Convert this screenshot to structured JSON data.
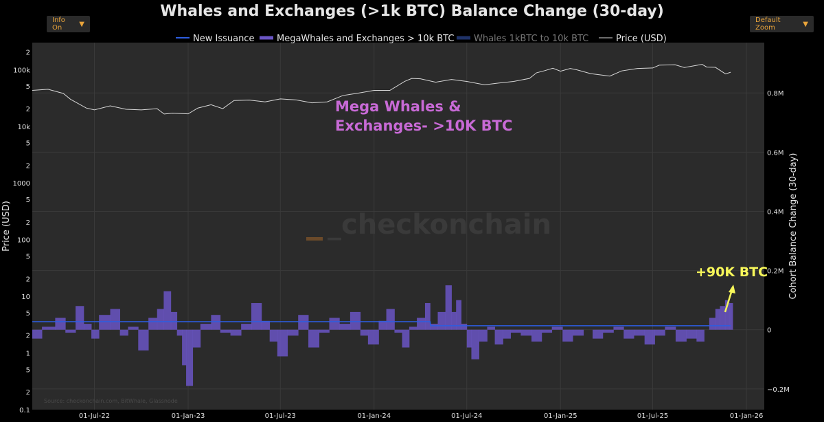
{
  "title": "Whales and Exchanges (>1k BTC) Balance Change (30-day)",
  "controls": {
    "info_label": "Info On",
    "zoom_label": "Default Zoom",
    "caret": "▼"
  },
  "colors": {
    "background": "#000000",
    "plot_bg": "#2b2b2b",
    "mega_fill": "#6a55c4",
    "issuance": "#2d5de0",
    "whales_1k_10k": "#1f3268",
    "price": "#d8d8d8",
    "annotation_pink": "#c86ad6",
    "annotation_yellow": "#f7f75a"
  },
  "annotations": {
    "mega_line1": "Mega Whales &",
    "mega_line2": "Exchanges- >10K BTC",
    "callout": "+90K BTC",
    "watermark": "_checkonchain",
    "source": "Source: checkonchain.com, BitWhale, Glassnode"
  },
  "chart_data": {
    "type": "area",
    "title": "Whales and Exchanges (>1k BTC) Balance Change (30-day)",
    "legend_position": "top",
    "legend": [
      "New Issuance",
      "MegaWhales and Exchanges > 10k BTC",
      "Whales 1kBTC to 10k BTC",
      "Price (USD)"
    ],
    "x_ticks": [
      "01-Jul-22",
      "01-Jan-23",
      "01-Jul-23",
      "01-Jan-24",
      "01-Jul-24",
      "01-Jan-25",
      "01-Jul-25",
      "01-Jan-26"
    ],
    "x_range": [
      "2022-03-01",
      "2026-02-05"
    ],
    "y_left": {
      "label": "Price (USD)",
      "scale": "log",
      "range": [
        0.1,
        300000
      ],
      "major_ticks": [
        "0.1",
        "1",
        "10",
        "100",
        "1000",
        "10k",
        "100k"
      ],
      "minor_ticks": [
        "2",
        "5"
      ]
    },
    "y_right": {
      "label": "Cohort Balance Change (30-day)",
      "range": [
        -0.27,
        0.97
      ],
      "ticks": [
        {
          "v": -0.2,
          "label": "−0.2M"
        },
        {
          "v": 0,
          "label": "0"
        },
        {
          "v": 0.2,
          "label": "0.2M"
        },
        {
          "v": 0.4,
          "label": "0.4M"
        },
        {
          "v": 0.6,
          "label": "0.6M"
        },
        {
          "v": 0.8,
          "label": "0.8M"
        }
      ]
    },
    "series": [
      {
        "name": "Price (USD)",
        "axis": "left",
        "points": [
          [
            "2022-03-01",
            43000
          ],
          [
            "2022-04-01",
            45000
          ],
          [
            "2022-05-01",
            38000
          ],
          [
            "2022-05-15",
            30000
          ],
          [
            "2022-06-15",
            21000
          ],
          [
            "2022-07-01",
            19500
          ],
          [
            "2022-08-01",
            23000
          ],
          [
            "2022-09-01",
            20000
          ],
          [
            "2022-10-01",
            19500
          ],
          [
            "2022-11-01",
            20500
          ],
          [
            "2022-11-15",
            16500
          ],
          [
            "2022-12-01",
            17000
          ],
          [
            "2023-01-01",
            16600
          ],
          [
            "2023-01-20",
            21000
          ],
          [
            "2023-02-15",
            24000
          ],
          [
            "2023-03-10",
            20500
          ],
          [
            "2023-04-01",
            28500
          ],
          [
            "2023-05-01",
            29000
          ],
          [
            "2023-06-01",
            27000
          ],
          [
            "2023-07-01",
            30500
          ],
          [
            "2023-08-01",
            29200
          ],
          [
            "2023-09-01",
            26000
          ],
          [
            "2023-10-01",
            27000
          ],
          [
            "2023-11-01",
            35000
          ],
          [
            "2023-12-01",
            38500
          ],
          [
            "2024-01-01",
            43000
          ],
          [
            "2024-02-01",
            43000
          ],
          [
            "2024-03-01",
            62000
          ],
          [
            "2024-03-15",
            70000
          ],
          [
            "2024-04-01",
            69000
          ],
          [
            "2024-05-01",
            60000
          ],
          [
            "2024-06-01",
            67000
          ],
          [
            "2024-07-01",
            62000
          ],
          [
            "2024-08-05",
            54000
          ],
          [
            "2024-09-01",
            58000
          ],
          [
            "2024-10-01",
            62000
          ],
          [
            "2024-11-01",
            70000
          ],
          [
            "2024-11-15",
            88000
          ],
          [
            "2024-12-01",
            96000
          ],
          [
            "2024-12-17",
            106000
          ],
          [
            "2025-01-01",
            94000
          ],
          [
            "2025-01-20",
            105000
          ],
          [
            "2025-02-01",
            100000
          ],
          [
            "2025-03-01",
            85000
          ],
          [
            "2025-04-08",
            77000
          ],
          [
            "2025-05-01",
            95000
          ],
          [
            "2025-06-01",
            105000
          ],
          [
            "2025-07-01",
            107000
          ],
          [
            "2025-07-14",
            120000
          ],
          [
            "2025-08-14",
            122000
          ],
          [
            "2025-09-01",
            109000
          ],
          [
            "2025-10-06",
            124000
          ],
          [
            "2025-10-15",
            111000
          ],
          [
            "2025-11-01",
            110000
          ],
          [
            "2025-11-21",
            84000
          ],
          [
            "2025-12-01",
            90000
          ]
        ]
      },
      {
        "name": "MegaWhales and Exchanges > 10k BTC",
        "axis": "right",
        "points": [
          [
            "2022-03-01",
            -0.03
          ],
          [
            "2022-03-20",
            0.01
          ],
          [
            "2022-04-15",
            0.04
          ],
          [
            "2022-05-05",
            -0.01
          ],
          [
            "2022-05-25",
            0.08
          ],
          [
            "2022-06-10",
            0.02
          ],
          [
            "2022-06-25",
            -0.03
          ],
          [
            "2022-07-10",
            0.05
          ],
          [
            "2022-08-01",
            0.07
          ],
          [
            "2022-08-20",
            -0.02
          ],
          [
            "2022-09-05",
            0.01
          ],
          [
            "2022-09-25",
            -0.07
          ],
          [
            "2022-10-15",
            0.04
          ],
          [
            "2022-11-01",
            0.07
          ],
          [
            "2022-11-14",
            0.13
          ],
          [
            "2022-11-28",
            0.06
          ],
          [
            "2022-12-10",
            -0.02
          ],
          [
            "2022-12-20",
            -0.12
          ],
          [
            "2022-12-28",
            -0.19
          ],
          [
            "2023-01-10",
            -0.06
          ],
          [
            "2023-01-25",
            0.02
          ],
          [
            "2023-02-15",
            0.05
          ],
          [
            "2023-03-05",
            -0.01
          ],
          [
            "2023-03-25",
            -0.02
          ],
          [
            "2023-04-15",
            0.02
          ],
          [
            "2023-05-05",
            0.09
          ],
          [
            "2023-05-25",
            0.03
          ],
          [
            "2023-06-10",
            -0.04
          ],
          [
            "2023-06-25",
            -0.09
          ],
          [
            "2023-07-15",
            -0.02
          ],
          [
            "2023-08-05",
            0.05
          ],
          [
            "2023-08-25",
            -0.06
          ],
          [
            "2023-09-15",
            -0.01
          ],
          [
            "2023-10-05",
            0.04
          ],
          [
            "2023-10-25",
            0.02
          ],
          [
            "2023-11-15",
            0.06
          ],
          [
            "2023-12-05",
            -0.02
          ],
          [
            "2023-12-20",
            -0.05
          ],
          [
            "2024-01-10",
            0.03
          ],
          [
            "2024-01-25",
            0.07
          ],
          [
            "2024-02-10",
            -0.01
          ],
          [
            "2024-02-25",
            -0.06
          ],
          [
            "2024-03-10",
            0.01
          ],
          [
            "2024-03-25",
            0.04
          ],
          [
            "2024-04-10",
            0.09
          ],
          [
            "2024-04-20",
            0.02
          ],
          [
            "2024-05-05",
            0.06
          ],
          [
            "2024-05-20",
            0.15
          ],
          [
            "2024-06-01",
            0.06
          ],
          [
            "2024-06-10",
            0.1
          ],
          [
            "2024-06-20",
            0.02
          ],
          [
            "2024-07-01",
            -0.06
          ],
          [
            "2024-07-10",
            -0.1
          ],
          [
            "2024-07-25",
            -0.04
          ],
          [
            "2024-08-10",
            0.01
          ],
          [
            "2024-08-25",
            -0.05
          ],
          [
            "2024-09-10",
            -0.03
          ],
          [
            "2024-09-25",
            -0.01
          ],
          [
            "2024-10-15",
            -0.02
          ],
          [
            "2024-11-05",
            -0.04
          ],
          [
            "2024-11-25",
            -0.01
          ],
          [
            "2024-12-15",
            0.01
          ],
          [
            "2025-01-05",
            -0.04
          ],
          [
            "2025-01-25",
            -0.02
          ],
          [
            "2025-02-15",
            0.0
          ],
          [
            "2025-03-05",
            -0.03
          ],
          [
            "2025-03-25",
            -0.01
          ],
          [
            "2025-04-15",
            0.01
          ],
          [
            "2025-05-05",
            -0.03
          ],
          [
            "2025-05-25",
            -0.02
          ],
          [
            "2025-06-15",
            -0.05
          ],
          [
            "2025-07-05",
            -0.02
          ],
          [
            "2025-07-25",
            0.01
          ],
          [
            "2025-08-15",
            -0.04
          ],
          [
            "2025-09-05",
            -0.03
          ],
          [
            "2025-09-25",
            -0.04
          ],
          [
            "2025-10-10",
            0.0
          ],
          [
            "2025-10-20",
            0.04
          ],
          [
            "2025-11-01",
            0.07
          ],
          [
            "2025-11-10",
            0.08
          ],
          [
            "2025-11-20",
            0.1
          ],
          [
            "2025-11-28",
            0.09
          ],
          [
            "2025-12-01",
            0.09
          ]
        ]
      },
      {
        "name": "New Issuance",
        "axis": "right",
        "points": [
          [
            "2022-03-01",
            0.027
          ],
          [
            "2024-04-20",
            0.027
          ],
          [
            "2024-04-21",
            0.0135
          ],
          [
            "2025-12-01",
            0.0135
          ]
        ]
      }
    ]
  }
}
